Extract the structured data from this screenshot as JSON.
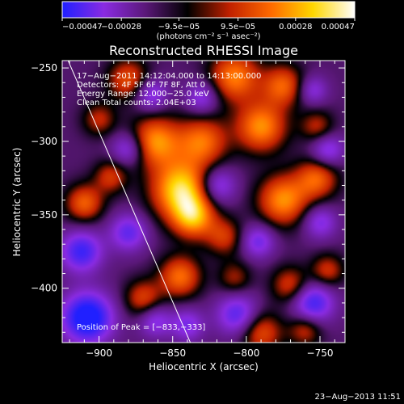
{
  "chart_data": {
    "type": "heatmap",
    "title": "Reconstructed RHESSI Image",
    "xlabel": "Heliocentric X (arcsec)",
    "ylabel": "Heliocentric Y (arcsec)",
    "xlim": [
      -925,
      -733
    ],
    "ylim": [
      -437,
      -245
    ],
    "x_ticks": [
      -900,
      -850,
      -800,
      -750
    ],
    "x_tick_labels": [
      "−900",
      "−850",
      "−800",
      "−750"
    ],
    "y_ticks": [
      -400,
      -350,
      -300,
      -250
    ],
    "y_tick_labels": [
      "−400",
      "−350",
      "−300",
      "−250"
    ],
    "colorbar": {
      "min": -0.00047,
      "max": 0.00047,
      "ticks": [
        -0.00047,
        -0.00028,
        -9.5e-05,
        9.5e-05,
        0.00028,
        0.00047
      ],
      "tick_labels": [
        "−0.00047",
        "−0.00028",
        "−9.5e−05",
        "9.5e−05",
        "0.00028",
        "0.00047"
      ],
      "units_label": "(photons cm⁻² s⁻¹ asec⁻²)",
      "colors": [
        "#2020ff",
        "#8a2be2",
        "#5a1878",
        "#000000",
        "#c02000",
        "#ff6a00",
        "#ffd700",
        "#ffffff"
      ]
    },
    "annotations": [
      "17−Aug−2011 14:12:04.000 to 14:13:00.000",
      "Detectors: 4F 5F 6F 7F 8F, Att 0",
      "Energy Range: 12.000−25.0 keV",
      "Clean     Total counts: 2.04E+03"
    ],
    "peak_label": "Position of Peak = [−833,−333]",
    "peak": [
      -833,
      -333
    ],
    "limb_line": [
      [
        -921,
        -245
      ],
      [
        -838,
        -437
      ]
    ],
    "date_stamp": "23−Aug−2013 11:51",
    "blobs": [
      {
        "x": -844,
        "y": -333,
        "s": 14,
        "a": 1.0
      },
      {
        "x": -836,
        "y": -352,
        "s": 10,
        "a": 0.7
      },
      {
        "x": -830,
        "y": -300,
        "s": 12,
        "a": 0.65
      },
      {
        "x": -862,
        "y": -300,
        "s": 12,
        "a": 0.75
      },
      {
        "x": -880,
        "y": -258,
        "s": 10,
        "a": 0.55
      },
      {
        "x": -808,
        "y": -256,
        "s": 12,
        "a": 0.7
      },
      {
        "x": -775,
        "y": -262,
        "s": 10,
        "a": 0.6
      },
      {
        "x": -790,
        "y": -290,
        "s": 12,
        "a": 0.75
      },
      {
        "x": -752,
        "y": -290,
        "s": 8,
        "a": 0.4
      },
      {
        "x": -910,
        "y": -342,
        "s": 9,
        "a": 0.6
      },
      {
        "x": -892,
        "y": -324,
        "s": 8,
        "a": 0.45
      },
      {
        "x": -775,
        "y": -340,
        "s": 12,
        "a": 0.75
      },
      {
        "x": -752,
        "y": -325,
        "s": 10,
        "a": 0.6
      },
      {
        "x": -815,
        "y": -365,
        "s": 9,
        "a": 0.45
      },
      {
        "x": -845,
        "y": -392,
        "s": 10,
        "a": 0.65
      },
      {
        "x": -870,
        "y": -407,
        "s": 9,
        "a": 0.5
      },
      {
        "x": -808,
        "y": -393,
        "s": 8,
        "a": 0.35
      },
      {
        "x": -770,
        "y": -398,
        "s": 9,
        "a": 0.5
      },
      {
        "x": -745,
        "y": -388,
        "s": 8,
        "a": 0.45
      },
      {
        "x": -790,
        "y": -430,
        "s": 10,
        "a": 0.55
      },
      {
        "x": -760,
        "y": -428,
        "s": 8,
        "a": 0.45
      },
      {
        "x": -900,
        "y": -285,
        "s": 8,
        "a": 0.4
      },
      {
        "x": -912,
        "y": -375,
        "s": 10,
        "a": -0.7
      },
      {
        "x": -908,
        "y": -420,
        "s": 12,
        "a": -1.0
      },
      {
        "x": -880,
        "y": -362,
        "s": 9,
        "a": -0.55
      },
      {
        "x": -862,
        "y": -422,
        "s": 8,
        "a": -0.45
      },
      {
        "x": -806,
        "y": -418,
        "s": 10,
        "a": -0.6
      },
      {
        "x": -755,
        "y": -410,
        "s": 10,
        "a": -0.7
      },
      {
        "x": -792,
        "y": -368,
        "s": 8,
        "a": -0.5
      },
      {
        "x": -820,
        "y": -330,
        "s": 9,
        "a": -0.55
      },
      {
        "x": -880,
        "y": -305,
        "s": 8,
        "a": -0.5
      },
      {
        "x": -745,
        "y": -306,
        "s": 8,
        "a": -0.5
      },
      {
        "x": -750,
        "y": -355,
        "s": 8,
        "a": -0.45
      },
      {
        "x": -830,
        "y": -270,
        "s": 8,
        "a": -0.45
      },
      {
        "x": -865,
        "y": -268,
        "s": 8,
        "a": -0.5
      },
      {
        "x": -755,
        "y": -265,
        "s": 7,
        "a": -0.4
      },
      {
        "x": -840,
        "y": -425,
        "s": 8,
        "a": -0.45
      }
    ]
  }
}
